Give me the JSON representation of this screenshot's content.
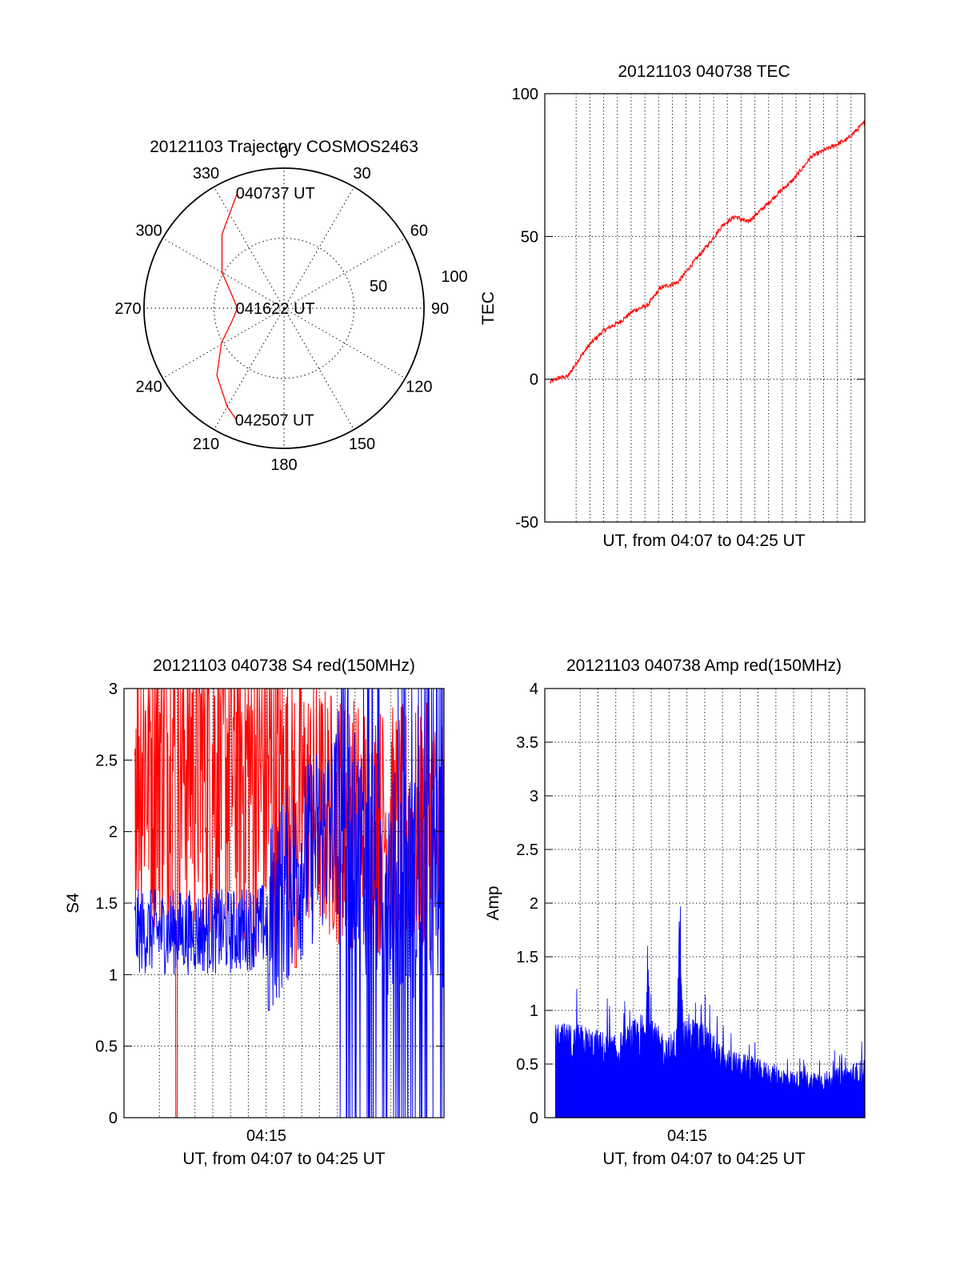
{
  "colors": {
    "red": "#ff0000",
    "blue": "#0000ff",
    "axis": "#000000",
    "background": "#ffffff"
  },
  "chart_data": [
    {
      "type": "polar",
      "title": "20121103 Trajectory COSMOS2463",
      "angle_labels": [
        "0",
        "30",
        "60",
        "90",
        "120",
        "150",
        "180",
        "210",
        "240",
        "270",
        "300",
        "330"
      ],
      "radial_labels": [
        "50",
        "100"
      ],
      "annotations": [
        {
          "text": "040737 UT",
          "azimuth": 338,
          "elevation": 10
        },
        {
          "text": "041622 UT",
          "azimuth": 270,
          "elevation": 60
        },
        {
          "text": "042507 UT",
          "azimuth": 203,
          "elevation": 12
        }
      ],
      "series": [
        {
          "color": "red",
          "points": [
            {
              "azimuth": 338,
              "elevation": 10
            },
            {
              "azimuth": 320,
              "elevation": 28
            },
            {
              "azimuth": 300,
              "elevation": 44
            },
            {
              "azimuth": 283,
              "elevation": 56
            },
            {
              "azimuth": 270,
              "elevation": 60
            },
            {
              "azimuth": 257,
              "elevation": 56
            },
            {
              "azimuth": 241,
              "elevation": 44
            },
            {
              "azimuth": 225,
              "elevation": 29
            },
            {
              "azimuth": 210,
              "elevation": 17
            },
            {
              "azimuth": 203,
              "elevation": 12
            }
          ]
        }
      ]
    },
    {
      "type": "line",
      "title": "20121103 040738 TEC",
      "xlabel": "UT, from 04:07 to 04:25 UT",
      "ylabel": "TEC",
      "xlim": [
        0,
        18
      ],
      "ylim": [
        -50,
        100
      ],
      "yticks": [
        "100",
        "50",
        "0",
        "-50"
      ],
      "series": [
        {
          "color": "red",
          "x": [
            0.3,
            0.8,
            1.3,
            1.8,
            2.5,
            3.3,
            4.2,
            5.0,
            5.8,
            6.5,
            7.5,
            8.5,
            9.3,
            10.0,
            10.7,
            11.4,
            12.3,
            13.1,
            14.0,
            15.0,
            16.0,
            17.0,
            18.0
          ],
          "y": [
            -1,
            0.5,
            1,
            6,
            12,
            17,
            20,
            24,
            26,
            32,
            34,
            42,
            48,
            54,
            57,
            55,
            60,
            65,
            70,
            78,
            81,
            84,
            90
          ]
        }
      ]
    },
    {
      "type": "line",
      "title": "20121103 040738 S4 red(150MHz)",
      "xlabel": "UT, from 04:07 to 04:25 UT",
      "ylabel": "S4",
      "xtick_label": "04:15",
      "xlim": [
        0,
        18
      ],
      "ylim": [
        0,
        3
      ],
      "yticks": [
        "3",
        "2.5",
        "2",
        "1.5",
        "1",
        "0.5",
        "0"
      ],
      "series": [
        {
          "color": "red",
          "x_range": [
            0,
            18
          ],
          "trend": "noisy, mostly 1.6–3.0 (saturated at 3 early), single dip to 0 near 04:09, 1.3–2.5 after 04:17",
          "x": [
            0,
            3,
            6,
            9,
            12,
            15,
            18
          ],
          "y": [
            2.6,
            2.6,
            2.5,
            2.3,
            2.1,
            2.0,
            2.0
          ]
        },
        {
          "color": "blue",
          "x_range": [
            0,
            18
          ],
          "trend": "noisy ~1.0–1.8 until 04:15, then rising and spiking 0–3 after 04:19",
          "x": [
            0,
            3,
            6,
            8,
            10,
            12,
            14,
            16,
            18
          ],
          "y": [
            1.3,
            1.3,
            1.3,
            1.35,
            1.8,
            2.1,
            1.7,
            1.6,
            1.7
          ]
        }
      ]
    },
    {
      "type": "line",
      "title": "20121103 040738 Amp red(150MHz)",
      "xlabel": "UT, from 04:07 to 04:25 UT",
      "ylabel": "Amp",
      "xtick_label": "04:15",
      "xlim": [
        0,
        18
      ],
      "ylim": [
        0,
        4
      ],
      "yticks": [
        "4",
        "3.5",
        "3",
        "2.5",
        "2",
        "1.5",
        "1",
        "0.5",
        "0"
      ],
      "series": [
        {
          "color": "blue",
          "x_range": [
            0,
            18
          ],
          "trend": "dense noise filled to zero, ~0.7–0.9 early, spikes 1.8 at ~04:13 and 2.35 at ~04:15, decaying to ~0.4 then rising to ~0.5",
          "x": [
            0,
            2,
            4,
            5.5,
            7,
            8,
            9,
            10,
            12,
            14,
            16,
            18
          ],
          "y": [
            0.8,
            0.8,
            0.7,
            0.9,
            0.7,
            0.9,
            0.8,
            0.6,
            0.5,
            0.4,
            0.4,
            0.5
          ],
          "peaks": [
            {
              "x": 5.8,
              "y": 1.8
            },
            {
              "x": 7.6,
              "y": 2.35
            },
            {
              "x": 8.8,
              "y": 1.25
            }
          ]
        }
      ]
    }
  ]
}
